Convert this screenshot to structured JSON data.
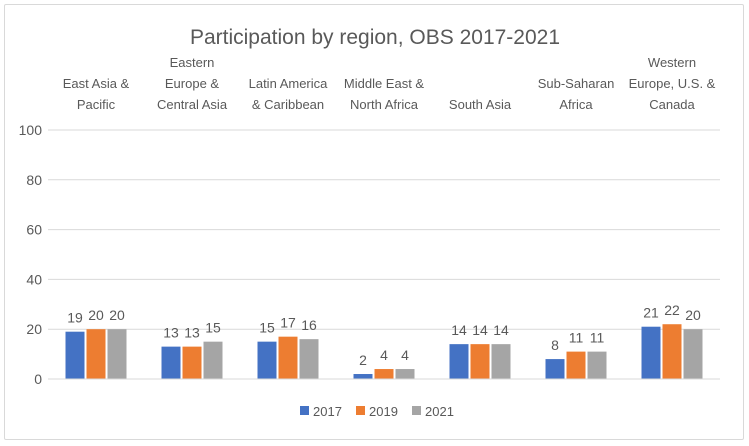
{
  "chart_data": {
    "type": "bar",
    "title": "Participation by region, OBS 2017-2021",
    "xlabel": "",
    "ylabel": "",
    "ylim": [
      0,
      100
    ],
    "yticks": [
      0,
      20,
      40,
      60,
      80,
      100
    ],
    "grid": true,
    "legend_position": "bottom",
    "category_label_position": "top",
    "categories": [
      [
        "East Asia &",
        "Pacific"
      ],
      [
        "Eastern",
        "Europe &",
        "Central Asia"
      ],
      [
        "Latin America",
        "& Caribbean"
      ],
      [
        "Middle East &",
        "North Africa"
      ],
      [
        "South Asia"
      ],
      [
        "Sub-Saharan",
        "Africa"
      ],
      [
        "Western",
        "Europe, U.S. &",
        "Canada"
      ]
    ],
    "series": [
      {
        "name": "2017",
        "color": "#4472c4",
        "values": [
          19,
          13,
          15,
          2,
          14,
          8,
          21
        ]
      },
      {
        "name": "2019",
        "color": "#ed7d31",
        "values": [
          20,
          13,
          17,
          4,
          14,
          11,
          22
        ]
      },
      {
        "name": "2021",
        "color": "#a5a5a5",
        "values": [
          20,
          15,
          16,
          4,
          14,
          11,
          20
        ]
      }
    ]
  }
}
